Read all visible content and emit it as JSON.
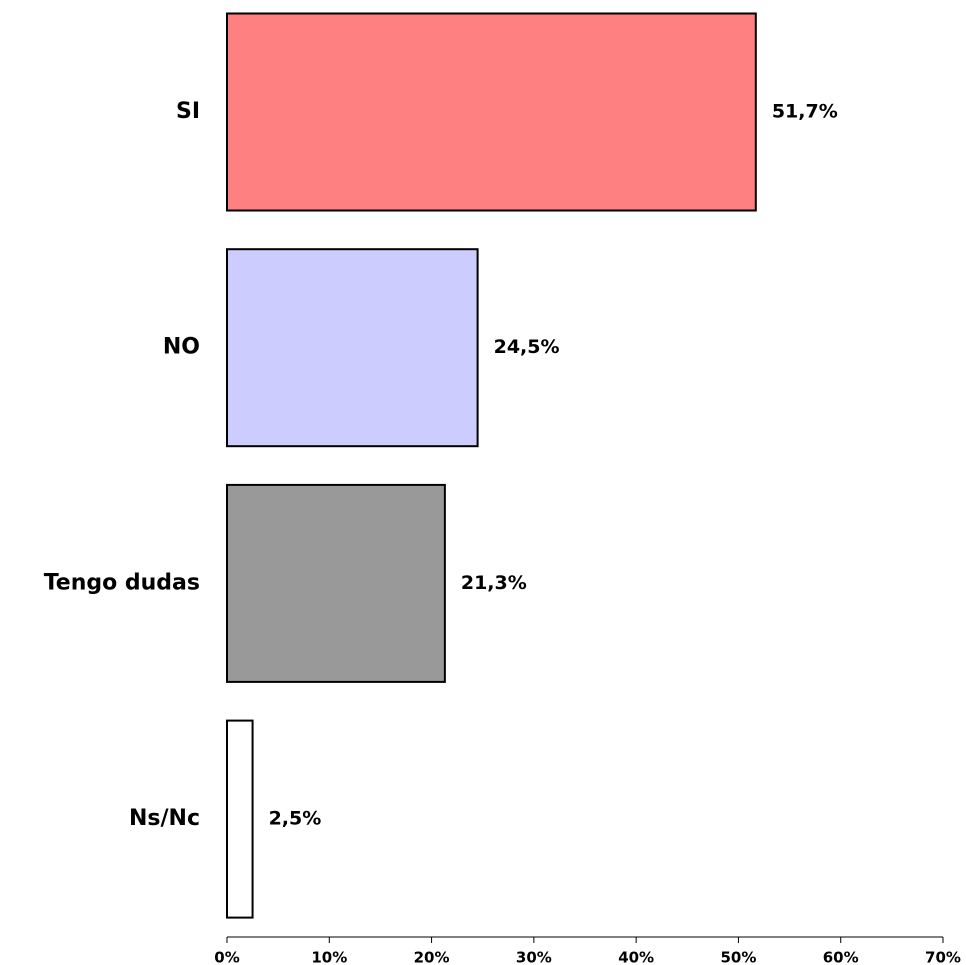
{
  "chart_data": {
    "type": "bar",
    "orientation": "horizontal",
    "categories": [
      "SI",
      "NO",
      "Tengo dudas",
      "Ns/Nc"
    ],
    "values": [
      51.7,
      24.5,
      21.3,
      2.5
    ],
    "value_labels": [
      "51,7%",
      "24,5%",
      "21,3%",
      "2,5%"
    ],
    "colors": [
      "#ff8080",
      "#ccccff",
      "#999999",
      "#ffffff"
    ],
    "xlim": [
      0,
      70
    ],
    "xticks": [
      {
        "value": 0,
        "label": "0%"
      },
      {
        "value": 10,
        "label": "10%"
      },
      {
        "value": 20,
        "label": "20%"
      },
      {
        "value": 30,
        "label": "30%"
      },
      {
        "value": 40,
        "label": "40%"
      },
      {
        "value": 50,
        "label": "50%"
      },
      {
        "value": 60,
        "label": "60%"
      },
      {
        "value": 70,
        "label": "70%"
      }
    ]
  }
}
